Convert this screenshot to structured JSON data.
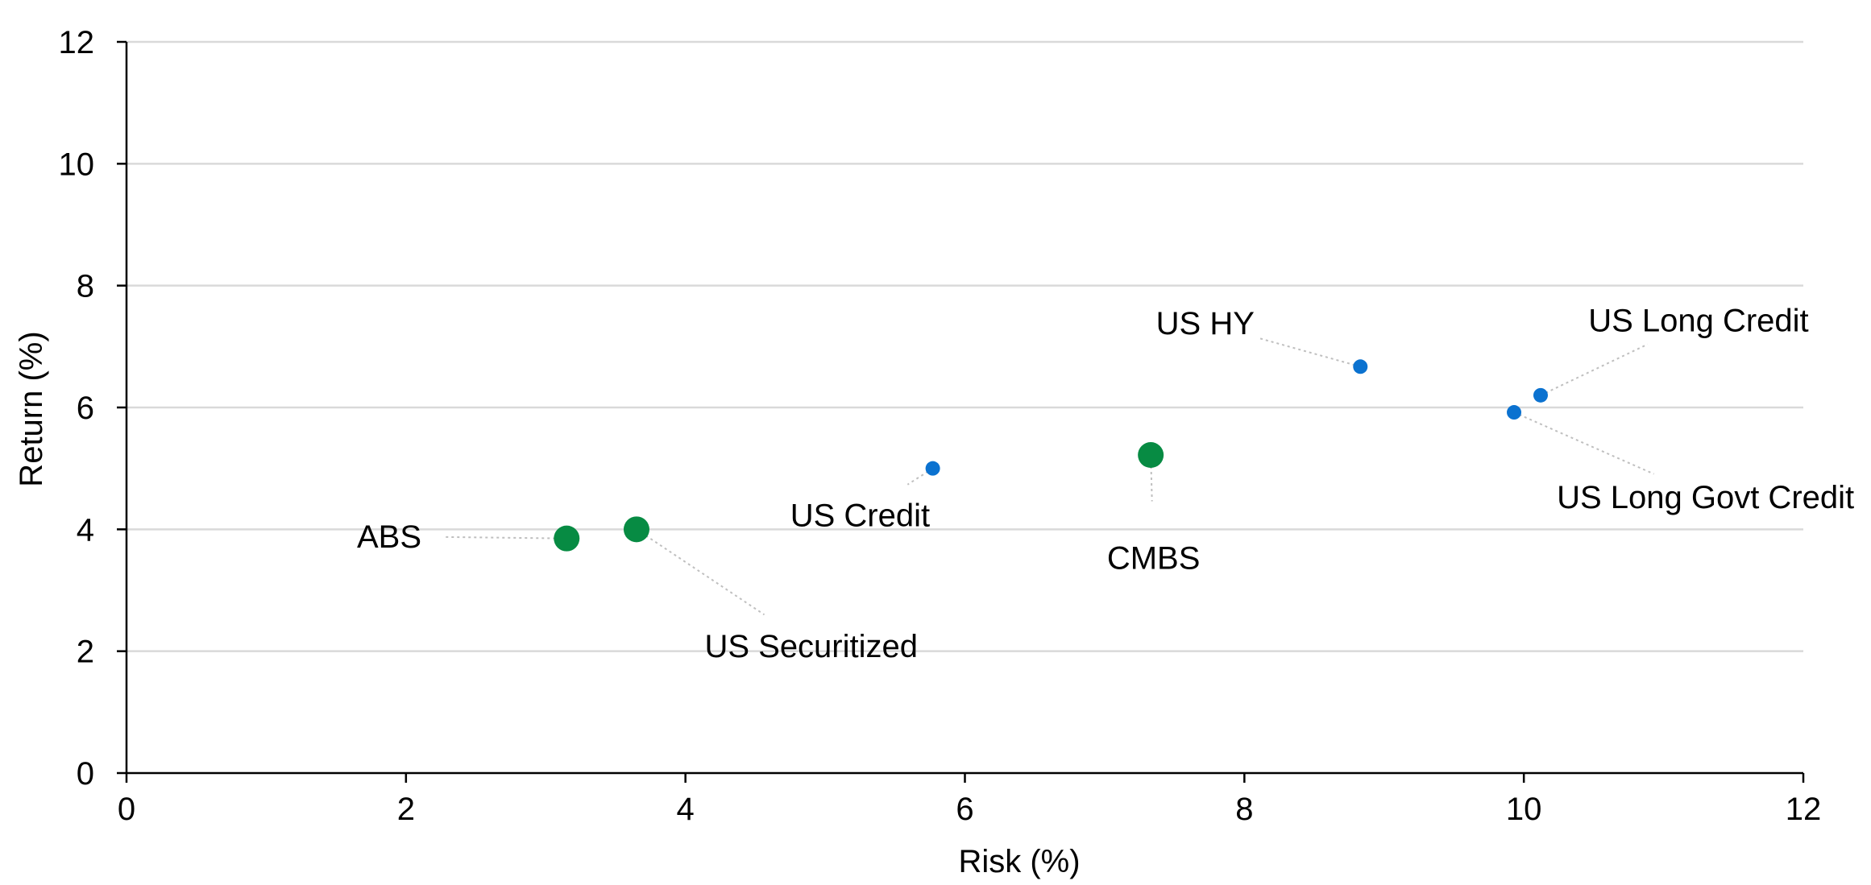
{
  "chart_data": {
    "type": "scatter",
    "title": "",
    "xlabel": "Risk (%)",
    "ylabel": "Return (%)",
    "xlim": [
      0,
      12
    ],
    "ylim": [
      0,
      12
    ],
    "xticks": [
      0,
      2,
      4,
      6,
      8,
      10,
      12
    ],
    "yticks": [
      0,
      2,
      4,
      6,
      8,
      10,
      12
    ],
    "grid": {
      "horizontal": true,
      "vertical": false
    },
    "colors": {
      "blue": "#0B72D0",
      "green": "#078B43",
      "grid": "#D9D9D9",
      "leader": "#BFBFBF"
    },
    "points": [
      {
        "label": "ABS",
        "x": 3.15,
        "y": 3.85,
        "color": "green",
        "size": "large",
        "label_at": {
          "x": 1.88,
          "y": 3.7
        },
        "anchor": "middle"
      },
      {
        "label": "US Securitized",
        "x": 3.65,
        "y": 4.0,
        "color": "green",
        "size": "large",
        "label_at": {
          "x": 4.9,
          "y": 1.9
        },
        "anchor": "middle"
      },
      {
        "label": "US Credit",
        "x": 5.77,
        "y": 5.0,
        "color": "blue",
        "size": "small",
        "label_at": {
          "x": 5.25,
          "y": 4.05
        },
        "anchor": "middle"
      },
      {
        "label": "CMBS",
        "x": 7.33,
        "y": 5.22,
        "color": "green",
        "size": "large",
        "label_at": {
          "x": 7.35,
          "y": 3.35
        },
        "anchor": "middle"
      },
      {
        "label": "US HY",
        "x": 8.83,
        "y": 6.67,
        "color": "blue",
        "size": "small",
        "label_at": {
          "x": 7.72,
          "y": 7.2
        },
        "anchor": "middle"
      },
      {
        "label": "US Long Credit",
        "x": 10.12,
        "y": 6.2,
        "color": "blue",
        "size": "small",
        "label_at": {
          "x": 11.25,
          "y": 7.25
        },
        "anchor": "middle"
      },
      {
        "label": "US Long Govt Credit",
        "x": 9.93,
        "y": 5.92,
        "color": "blue",
        "size": "small",
        "label_at": {
          "x": 11.3,
          "y": 4.35
        },
        "anchor": "middle"
      }
    ]
  }
}
